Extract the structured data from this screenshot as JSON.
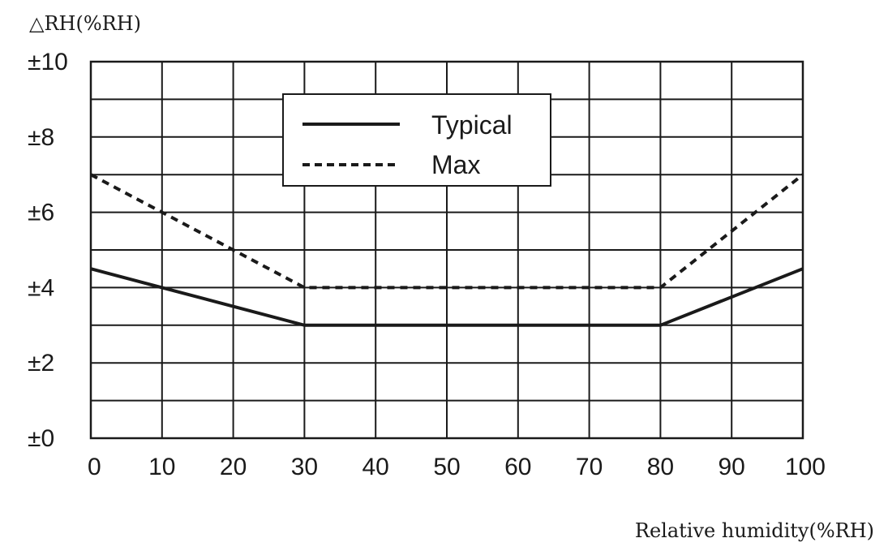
{
  "chart_data": {
    "type": "line",
    "ylabel": "△RH(%RH)",
    "xlabel": "Relative humidity(%RH)",
    "xlim": [
      0,
      100
    ],
    "ylim": [
      0,
      10
    ],
    "x_ticks": [
      0,
      10,
      20,
      30,
      40,
      50,
      60,
      70,
      80,
      90,
      100
    ],
    "x_tick_labels": [
      "0",
      "10",
      "20",
      "30",
      "40",
      "50",
      "60",
      "70",
      "80",
      "90",
      "100"
    ],
    "y_ticks": [
      0,
      2,
      4,
      6,
      8,
      10
    ],
    "y_tick_labels": [
      "±0",
      "±2",
      "±4",
      "±6",
      "±8",
      "±10"
    ],
    "grid": true,
    "legend_position": "top-center",
    "series": [
      {
        "name": "Typical",
        "style": "solid",
        "color": "#1a1a1a",
        "x": [
          0,
          10,
          30,
          80,
          100
        ],
        "y": [
          4.5,
          4,
          3,
          3,
          4.5
        ]
      },
      {
        "name": "Max",
        "style": "dashed",
        "color": "#1a1a1a",
        "x": [
          0,
          10,
          30,
          80,
          100
        ],
        "y": [
          7,
          6,
          4,
          4,
          7
        ]
      }
    ]
  }
}
